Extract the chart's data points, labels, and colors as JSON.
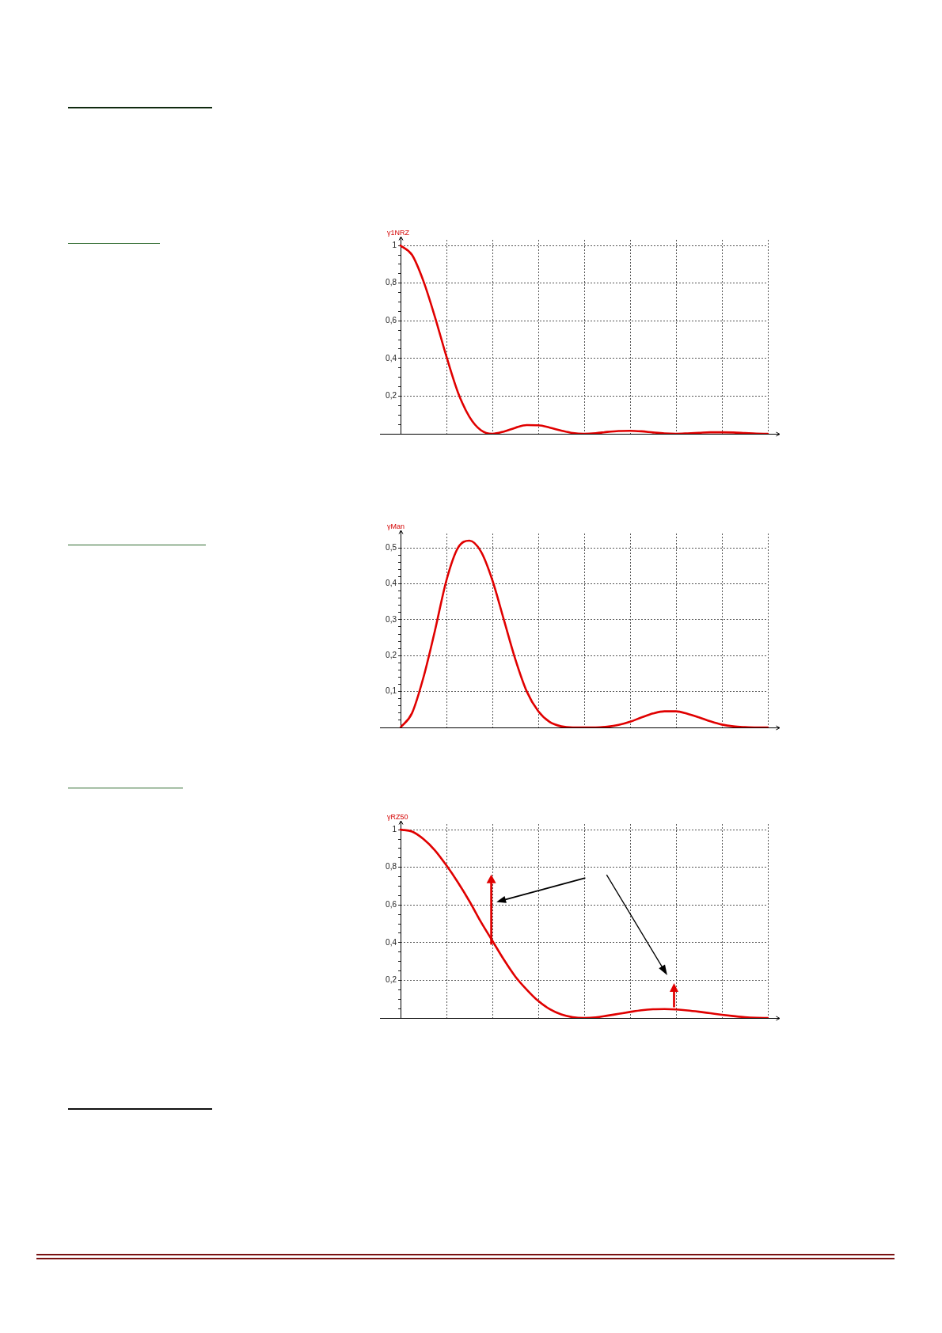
{
  "chart_data": [
    {
      "type": "line",
      "ylabel": "γ1NRZ",
      "categories": [
        null,
        null,
        null,
        null,
        null,
        null,
        null,
        null,
        null,
        null,
        null,
        null,
        null,
        null,
        null,
        null,
        null,
        null,
        null,
        null,
        null,
        null,
        null,
        null,
        null,
        null,
        null,
        null,
        null,
        null,
        null,
        null,
        null
      ],
      "values": [
        1,
        0.95,
        0.81,
        0.62,
        0.41,
        0.22,
        0.09,
        0.019,
        0,
        0.012,
        0.032,
        0.046,
        0.045,
        0.033,
        0.017,
        0.004,
        0,
        0.003,
        0.01,
        0.015,
        0.016,
        0.013,
        0.007,
        0.002,
        0,
        0.002,
        0.005,
        0.008,
        0.008,
        0.007,
        0.004,
        0.001,
        0
      ],
      "color": "#e00000",
      "marker": "none",
      "ylim": [
        0,
        1.03
      ],
      "yticks": [
        {
          "value": 0.05,
          "label": null
        },
        {
          "value": 0.1,
          "label": null
        },
        {
          "value": 0.15,
          "label": null
        },
        {
          "value": 0.2,
          "label": "0,2"
        },
        {
          "value": 0.25,
          "label": null
        },
        {
          "value": 0.3,
          "label": null
        },
        {
          "value": 0.35,
          "label": null
        },
        {
          "value": 0.4,
          "label": "0,4"
        },
        {
          "value": 0.45,
          "label": null
        },
        {
          "value": 0.5,
          "label": null
        },
        {
          "value": 0.55,
          "label": null
        },
        {
          "value": 0.6,
          "label": "0,6"
        },
        {
          "value": 0.65,
          "label": null
        },
        {
          "value": 0.7,
          "label": null
        },
        {
          "value": 0.75,
          "label": null
        },
        {
          "value": 0.8,
          "label": "0,8"
        },
        {
          "value": 0.85,
          "label": null
        },
        {
          "value": 0.9,
          "label": null
        },
        {
          "value": 0.95,
          "label": null
        },
        1
      ],
      "grid": true,
      "tick_labels": "y"
    },
    {
      "type": "line",
      "ylabel": "γMan",
      "categories": [
        null,
        null,
        null,
        null,
        null,
        null,
        null,
        null,
        null,
        null,
        null,
        null,
        null,
        null,
        null,
        null,
        null,
        null,
        null,
        null,
        null,
        null,
        null,
        null,
        null,
        null,
        null,
        null,
        null,
        null,
        null,
        null,
        null
      ],
      "values": [
        0,
        0.04,
        0.14,
        0.27,
        0.41,
        0.5,
        0.52,
        0.49,
        0.41,
        0.3,
        0.19,
        0.1,
        0.045,
        0.015,
        0.003,
        0,
        0,
        0,
        0.002,
        0.007,
        0.016,
        0.028,
        0.039,
        0.045,
        0.045,
        0.038,
        0.028,
        0.017,
        0.008,
        0.003,
        0.001,
        0,
        0
      ],
      "color": "#e00000",
      "marker": "none",
      "ylim": [
        0,
        0.54
      ],
      "yticks": [
        {
          "value": 0.02,
          "label": null
        },
        {
          "value": 0.04,
          "label": null
        },
        {
          "value": 0.06,
          "label": null
        },
        {
          "value": 0.08,
          "label": null
        },
        {
          "value": 0.1,
          "label": "0,1"
        },
        {
          "value": 0.12,
          "label": null
        },
        {
          "value": 0.14,
          "label": null
        },
        {
          "value": 0.16,
          "label": null
        },
        {
          "value": 0.18,
          "label": null
        },
        {
          "value": 0.2,
          "label": "0,2"
        },
        {
          "value": 0.22,
          "label": null
        },
        {
          "value": 0.24,
          "label": null
        },
        {
          "value": 0.26,
          "label": null
        },
        {
          "value": 0.28,
          "label": null
        },
        {
          "value": 0.3,
          "label": "0,3"
        },
        {
          "value": 0.32,
          "label": null
        },
        {
          "value": 0.34,
          "label": null
        },
        {
          "value": 0.36,
          "label": null
        },
        {
          "value": 0.38,
          "label": null
        },
        {
          "value": 0.4,
          "label": "0,4"
        },
        {
          "value": 0.42,
          "label": null
        },
        {
          "value": 0.44,
          "label": null
        },
        {
          "value": 0.46,
          "label": null
        },
        {
          "value": 0.48,
          "label": null
        },
        {
          "value": 0.5,
          "label": "0,5"
        }
      ],
      "grid": true,
      "tick_labels": "y"
    },
    {
      "type": "line",
      "ylabel": "γRZ50",
      "categories": [
        null,
        null,
        null,
        null,
        null,
        null,
        null,
        null,
        null,
        null,
        null,
        null,
        null,
        null,
        null,
        null,
        null,
        null,
        null,
        null,
        null,
        null,
        null,
        null,
        null,
        null,
        null,
        null,
        null,
        null,
        null,
        null,
        null
      ],
      "values": [
        1,
        0.99,
        0.95,
        0.89,
        0.81,
        0.72,
        0.62,
        0.51,
        0.41,
        0.31,
        0.22,
        0.15,
        0.09,
        0.047,
        0.019,
        0.004,
        0,
        0.003,
        0.012,
        0.022,
        0.032,
        0.041,
        0.046,
        0.047,
        0.045,
        0.04,
        0.033,
        0.025,
        0.017,
        0.01,
        0.004,
        0.001,
        0
      ],
      "color": "#e00000",
      "marker": "none",
      "ylim": [
        0,
        1.03
      ],
      "yticks": [
        {
          "value": 0.05,
          "label": null
        },
        {
          "value": 0.1,
          "label": null
        },
        {
          "value": 0.15,
          "label": null
        },
        {
          "value": 0.2,
          "label": "0,2"
        },
        {
          "value": 0.25,
          "label": null
        },
        {
          "value": 0.3,
          "label": null
        },
        {
          "value": 0.35,
          "label": null
        },
        {
          "value": 0.4,
          "label": "0,4"
        },
        {
          "value": 0.45,
          "label": null
        },
        {
          "value": 0.5,
          "label": null
        },
        {
          "value": 0.55,
          "label": null
        },
        {
          "value": 0.6,
          "label": "0,6"
        },
        {
          "value": 0.65,
          "label": null
        },
        {
          "value": 0.7,
          "label": null
        },
        {
          "value": 0.75,
          "label": null
        },
        {
          "value": 0.8,
          "label": "0,8"
        },
        {
          "value": 0.85,
          "label": null
        },
        {
          "value": 0.9,
          "label": null
        },
        {
          "value": 0.95,
          "label": null
        },
        1
      ],
      "grid": true,
      "tick_labels": "y"
    }
  ]
}
